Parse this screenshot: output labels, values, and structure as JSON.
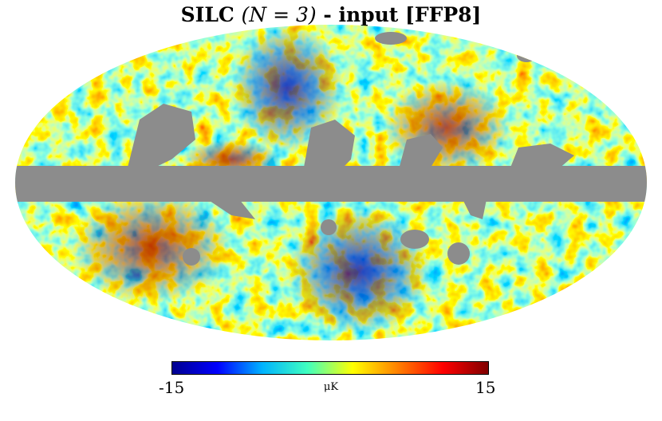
{
  "title": {
    "prefix": "SILC ",
    "math": "(N = 3)",
    "suffix": " - input [FFP8]"
  },
  "colorbar": {
    "min_label": "-15",
    "max_label": "15",
    "unit": "μK",
    "colors": [
      "#00008f",
      "#0000ff",
      "#00b4ff",
      "#40ffbf",
      "#ffff00",
      "#ff8000",
      "#ff0000",
      "#800000"
    ]
  },
  "map": {
    "projection": "mollweide",
    "mask_color": "#8c8c8c"
  }
}
